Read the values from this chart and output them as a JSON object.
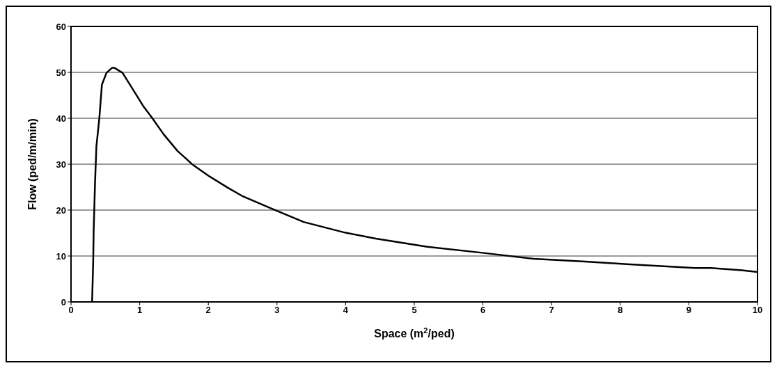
{
  "chart_data": {
    "type": "line",
    "xlabel": "Space (m$^{2}$/ped)",
    "ylabel": "Flow (ped/m/min)",
    "x": [
      0.307,
      0.323,
      0.33,
      0.35,
      0.37,
      0.413,
      0.45,
      0.517,
      0.6,
      0.63,
      0.75,
      0.88,
      1.05,
      1.18,
      1.35,
      1.55,
      1.78,
      2.0,
      2.28,
      2.49,
      2.94,
      3.39,
      3.99,
      4.44,
      5.19,
      5.99,
      6.74,
      7.49,
      8.14,
      9.09,
      9.32,
      9.77,
      10
    ],
    "series": [
      {
        "color": "#000000",
        "values": [
          0,
          8.8,
          15.5,
          26,
          33.9,
          40.1,
          47.3,
          49.9,
          51,
          51,
          49.9,
          46.8,
          42.7,
          40.1,
          36.5,
          32.9,
          29.8,
          27.5,
          24.9,
          23.1,
          20.2,
          17.4,
          15.1,
          13.8,
          12.0,
          10.7,
          9.4,
          8.8,
          8.2,
          7.4,
          7.4,
          6.9,
          6.5
        ]
      }
    ],
    "xlim": [
      0,
      10
    ],
    "xticks": [
      0,
      1,
      2,
      3,
      4,
      5,
      6,
      7,
      8,
      9,
      10
    ],
    "ylim": [
      0,
      60
    ],
    "yticks": [
      0,
      10,
      20,
      30,
      40,
      50,
      60
    ],
    "grid": "y",
    "marker": "none",
    "line_style": "solid"
  }
}
